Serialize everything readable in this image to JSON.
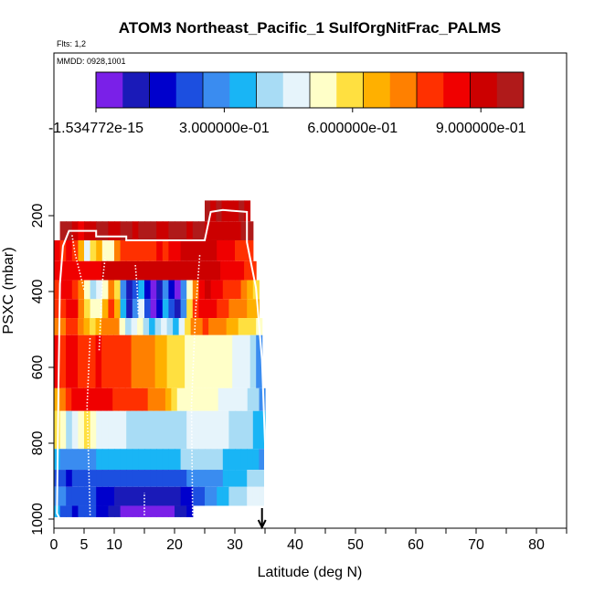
{
  "chart_data": {
    "type": "heatmap",
    "title": "ATOM3 Northeast_Pacific_1 SulfOrgNitFrac_PALMS",
    "flights_label": "Flts: 1,2",
    "mmdd_label": "MMDD: 0928,1001",
    "xlabel": "Latitude (deg N)",
    "ylabel": "PSXC (mbar)",
    "xlim": [
      0,
      85
    ],
    "ylim": [
      1000,
      50
    ],
    "x_ticks": [
      0,
      5,
      10,
      20,
      30,
      40,
      50,
      60,
      70,
      80
    ],
    "x_tick_labels": [
      "0",
      "5",
      "10",
      "20",
      "30",
      "40",
      "50",
      "60",
      "70",
      "80"
    ],
    "y_ticks": [
      200,
      400,
      600,
      800,
      1000
    ],
    "y_tick_labels": [
      "200",
      "400",
      "600",
      "800",
      "1000"
    ],
    "colorbar": {
      "min": 0,
      "max": 1.0,
      "colors": [
        "#7a20e8",
        "#1a1ab8",
        "#0000cc",
        "#1c4fe0",
        "#3a8cf0",
        "#19b5f5",
        "#a8dcf5",
        "#e6f4fb",
        "#ffffc8",
        "#ffe040",
        "#ffb000",
        "#ff8000",
        "#ff3000",
        "#f00000",
        "#cc0000",
        "#b01a1a"
      ],
      "tick_values": [
        0,
        0.3,
        0.6,
        0.9
      ],
      "tick_labels": [
        "-1.534772e-15",
        "3.000000e-01",
        "6.000000e-01",
        "9.000000e-01"
      ]
    },
    "pressure_bands": [
      {
        "p_top": 215,
        "p_bot": 265,
        "x_start": 1.0,
        "x_end": 33.0,
        "values": [
          0.97,
          0.95,
          0.9,
          0.85,
          0.9,
          0.93,
          0.96,
          0.95,
          0.9,
          0.92,
          0.96,
          0.95,
          0.93,
          0.95,
          0.96,
          0.95,
          0.92,
          0.93,
          0.96,
          0.95,
          0.95,
          0.93,
          0.97,
          0.97,
          0.93,
          0.9,
          0.92,
          0.91,
          0.9,
          0.93,
          0.95,
          0.96
        ]
      },
      {
        "p_top": 160,
        "p_bot": 215,
        "x_start": 25.0,
        "x_end": 32.5,
        "values": [
          0.95,
          0.9,
          0.97,
          0.92,
          0.88,
          0.93,
          0.96,
          0.9
        ]
      },
      {
        "p_top": 265,
        "p_bot": 320,
        "x_start": 0.0,
        "x_end": 33.0,
        "values": [
          0.82,
          0.78,
          0.85,
          0.75,
          0.65,
          0.45,
          0.6,
          0.65,
          0.55,
          0.5,
          0.72,
          0.75,
          0.8,
          0.75,
          0.8,
          0.78,
          0.8,
          0.82,
          0.8,
          0.82,
          0.84,
          0.88,
          0.9,
          0.92,
          0.9,
          0.9,
          0.88,
          0.85,
          0.84,
          0.82,
          0.8,
          0.78,
          0.8
        ]
      },
      {
        "p_top": 320,
        "p_bot": 370,
        "x_start": 0.0,
        "x_end": 33.5,
        "values": [
          0.85,
          0.82,
          0.86,
          0.84,
          0.85,
          0.86,
          0.87,
          0.86,
          0.88,
          0.9,
          0.91,
          0.9,
          0.89,
          0.9,
          0.91,
          0.9,
          0.89,
          0.9,
          0.91,
          0.92,
          0.9,
          0.88,
          0.9,
          0.92,
          0.93,
          0.92,
          0.9,
          0.88,
          0.87,
          0.85,
          0.83,
          0.82,
          0.8,
          0.78
        ]
      },
      {
        "p_top": 370,
        "p_bot": 420,
        "x_start": 0.0,
        "x_end": 34.0,
        "values": [
          0.8,
          0.84,
          0.82,
          0.78,
          0.7,
          0.55,
          0.4,
          0.45,
          0.55,
          0.7,
          0.6,
          0.3,
          0.1,
          0.2,
          0.35,
          0.15,
          0.05,
          0.12,
          0.3,
          0.15,
          0.05,
          0.25,
          0.55,
          0.7,
          0.85,
          0.88,
          0.85,
          0.82,
          0.8,
          0.78,
          0.76,
          0.72,
          0.65,
          0.6
        ]
      },
      {
        "p_top": 420,
        "p_bot": 470,
        "x_start": 0.0,
        "x_end": 34.0,
        "values": [
          0.75,
          0.8,
          0.85,
          0.82,
          0.72,
          0.6,
          0.5,
          0.55,
          0.68,
          0.75,
          0.65,
          0.35,
          0.1,
          0.25,
          0.45,
          0.2,
          0.05,
          0.15,
          0.35,
          0.2,
          0.08,
          0.3,
          0.6,
          0.75,
          0.82,
          0.85,
          0.82,
          0.78,
          0.76,
          0.74,
          0.72,
          0.7,
          0.68,
          0.65
        ]
      },
      {
        "p_top": 470,
        "p_bot": 515,
        "x_start": 0.0,
        "x_end": 34.5,
        "values": [
          0.7,
          0.74,
          0.78,
          0.76,
          0.7,
          0.65,
          0.62,
          0.66,
          0.72,
          0.74,
          0.7,
          0.55,
          0.4,
          0.45,
          0.5,
          0.42,
          0.35,
          0.4,
          0.45,
          0.4,
          0.35,
          0.45,
          0.6,
          0.7,
          0.74,
          0.76,
          0.74,
          0.72,
          0.7,
          0.68,
          0.65,
          0.62,
          0.6,
          0.58,
          0.5
        ]
      },
      {
        "p_top": 515,
        "p_bot": 655,
        "x_start": 0.0,
        "x_end": 34.5,
        "values": [
          0.82,
          0.8,
          0.83,
          0.82,
          0.8,
          0.78,
          0.8,
          0.82,
          0.81,
          0.8,
          0.78,
          0.76,
          0.75,
          0.74,
          0.73,
          0.72,
          0.7,
          0.68,
          0.66,
          0.62,
          0.6,
          0.58,
          0.56,
          0.55,
          0.54,
          0.53,
          0.52,
          0.52,
          0.51,
          0.5,
          0.48,
          0.46,
          0.44,
          0.4,
          0.3
        ]
      },
      {
        "p_top": 655,
        "p_bot": 715,
        "x_start": 0.0,
        "x_end": 35.0,
        "values": [
          0.65,
          0.72,
          0.8,
          0.82,
          0.84,
          0.83,
          0.84,
          0.85,
          0.84,
          0.82,
          0.8,
          0.79,
          0.78,
          0.77,
          0.76,
          0.75,
          0.74,
          0.72,
          0.7,
          0.66,
          0.6,
          0.56,
          0.54,
          0.53,
          0.52,
          0.51,
          0.5,
          0.5,
          0.49,
          0.48,
          0.46,
          0.45,
          0.44,
          0.42,
          0.4,
          0.3
        ]
      },
      {
        "p_top": 715,
        "p_bot": 815,
        "x_start": 0.0,
        "x_end": 35.0,
        "values": [
          0.62,
          0.55,
          0.4,
          0.45,
          0.52,
          0.58,
          0.5,
          0.48,
          0.46,
          0.45,
          0.44,
          0.44,
          0.43,
          0.43,
          0.42,
          0.42,
          0.42,
          0.41,
          0.41,
          0.42,
          0.42,
          0.43,
          0.45,
          0.46,
          0.47,
          0.48,
          0.47,
          0.45,
          0.44,
          0.43,
          0.42,
          0.4,
          0.38,
          0.36,
          0.35
        ]
      },
      {
        "p_top": 815,
        "p_bot": 870,
        "x_start": 0.0,
        "x_end": 35.0,
        "values": [
          0.35,
          0.3,
          0.26,
          0.27,
          0.28,
          0.3,
          0.31,
          0.32,
          0.32,
          0.32,
          0.32,
          0.32,
          0.33,
          0.33,
          0.33,
          0.33,
          0.34,
          0.34,
          0.35,
          0.36,
          0.37,
          0.38,
          0.38,
          0.38,
          0.38,
          0.38,
          0.38,
          0.38,
          0.37,
          0.36,
          0.35,
          0.34,
          0.33,
          0.32,
          0.3
        ]
      },
      {
        "p_top": 870,
        "p_bot": 915,
        "x_start": 0.0,
        "x_end": 35.0,
        "values": [
          0.24,
          0.2,
          0.18,
          0.2,
          0.22,
          0.22,
          0.23,
          0.23,
          0.23,
          0.23,
          0.23,
          0.23,
          0.23,
          0.23,
          0.23,
          0.23,
          0.23,
          0.23,
          0.23,
          0.23,
          0.23,
          0.24,
          0.25,
          0.26,
          0.27,
          0.28,
          0.29,
          0.3,
          0.32,
          0.34,
          0.35,
          0.36,
          0.38,
          0.4,
          0.42
        ]
      },
      {
        "p_top": 915,
        "p_bot": 965,
        "x_start": 0.0,
        "x_end": 35.0,
        "values": [
          0.3,
          0.25,
          0.2,
          0.22,
          0.24,
          0.22,
          0.2,
          0.18,
          0.16,
          0.14,
          0.12,
          0.1,
          0.1,
          0.1,
          0.12,
          0.12,
          0.1,
          0.1,
          0.1,
          0.11,
          0.12,
          0.14,
          0.16,
          0.2,
          0.24,
          0.27,
          0.3,
          0.33,
          0.36,
          0.38,
          0.4,
          0.42,
          0.44,
          0.46,
          0.48
        ]
      },
      {
        "p_top": 965,
        "p_bot": 995,
        "x_start": 0.0,
        "x_end": 23.0,
        "values": [
          0.32,
          0.24,
          0.2,
          0.18,
          0.2,
          0.22,
          0.2,
          0.18,
          0.14,
          0.1,
          0.08,
          0.05,
          0.04,
          0.04,
          0.05,
          0.06,
          0.05,
          0.04,
          0.04,
          0.05,
          0.08,
          0.12,
          0.15
        ]
      }
    ],
    "flight_track_solid": [
      [
        1.0,
        1000
      ],
      [
        0.5,
        985
      ],
      [
        0.8,
        600
      ],
      [
        1.0,
        380
      ],
      [
        1.5,
        280
      ],
      [
        2.5,
        240
      ],
      [
        5.0,
        240
      ],
      [
        7.0,
        240
      ],
      [
        7.0,
        255
      ],
      [
        12.0,
        255
      ],
      [
        12.0,
        265
      ],
      [
        25.0,
        265
      ],
      [
        26.0,
        190
      ],
      [
        28.0,
        185
      ],
      [
        32.0,
        190
      ],
      [
        32.0,
        270
      ],
      [
        33.5,
        390
      ],
      [
        34.5,
        580
      ],
      [
        35.0,
        800
      ],
      [
        35.0,
        985
      ]
    ],
    "flight_track_dotted": [
      [
        [
          5.0,
          395
        ],
        [
          3.5,
          300
        ],
        [
          3.0,
          250
        ]
      ],
      [
        [
          6.0,
          990
        ],
        [
          5.5,
          700
        ],
        [
          6.0,
          520
        ]
      ],
      [
        [
          7.5,
          555
        ],
        [
          8.0,
          380
        ],
        [
          8.5,
          310
        ]
      ],
      [
        [
          14.0,
          460
        ],
        [
          13.8,
          390
        ],
        [
          13.5,
          330
        ]
      ],
      [
        [
          15.0,
          990
        ],
        [
          15.0,
          930
        ]
      ],
      [
        [
          23.0,
          990
        ],
        [
          22.8,
          700
        ],
        [
          23.5,
          450
        ],
        [
          24.2,
          300
        ]
      ]
    ],
    "arrow_latitude": 34.5
  }
}
